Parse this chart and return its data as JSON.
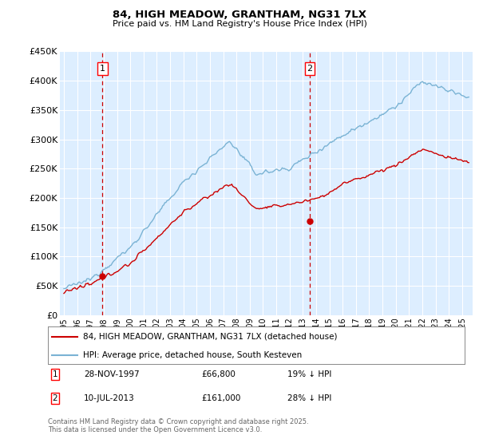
{
  "title1": "84, HIGH MEADOW, GRANTHAM, NG31 7LX",
  "title2": "Price paid vs. HM Land Registry's House Price Index (HPI)",
  "ylim": [
    0,
    450000
  ],
  "yticks": [
    0,
    50000,
    100000,
    150000,
    200000,
    250000,
    300000,
    350000,
    400000,
    450000
  ],
  "ytick_labels": [
    "£0",
    "£50K",
    "£100K",
    "£150K",
    "£200K",
    "£250K",
    "£300K",
    "£350K",
    "£400K",
    "£450K"
  ],
  "hpi_color": "#7ab3d4",
  "price_color": "#cc0000",
  "marker_color": "#cc0000",
  "dashed_color": "#cc0000",
  "point1_x": 1997.91,
  "point1_y": 66800,
  "point2_x": 2013.53,
  "point2_y": 161000,
  "legend_line1": "84, HIGH MEADOW, GRANTHAM, NG31 7LX (detached house)",
  "legend_line2": "HPI: Average price, detached house, South Kesteven",
  "annotation1_date": "28-NOV-1997",
  "annotation1_price": "£66,800",
  "annotation1_hpi": "19% ↓ HPI",
  "annotation2_date": "10-JUL-2013",
  "annotation2_price": "£161,000",
  "annotation2_hpi": "28% ↓ HPI",
  "footer": "Contains HM Land Registry data © Crown copyright and database right 2025.\nThis data is licensed under the Open Government Licence v3.0.",
  "bg_color": "#ffffff",
  "plot_bg_color": "#ddeeff",
  "grid_color": "#ffffff",
  "xtick_years": [
    1995,
    1996,
    1997,
    1998,
    1999,
    2000,
    2001,
    2002,
    2003,
    2004,
    2005,
    2006,
    2007,
    2008,
    2009,
    2010,
    2011,
    2012,
    2013,
    2014,
    2015,
    2016,
    2017,
    2018,
    2019,
    2020,
    2021,
    2022,
    2023,
    2024,
    2025
  ]
}
